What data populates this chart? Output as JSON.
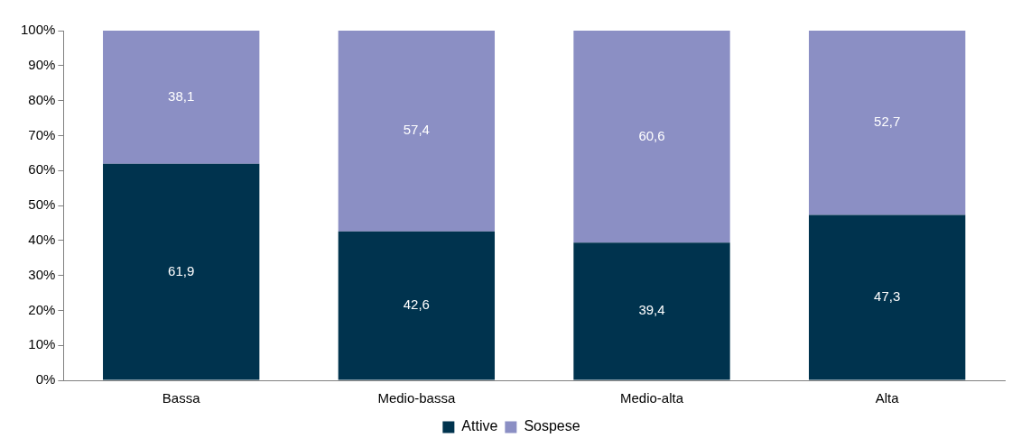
{
  "chart_data": {
    "type": "bar",
    "stacked": true,
    "categories": [
      "Bassa",
      "Medio-bassa",
      "Medio-alta",
      "Alta"
    ],
    "series": [
      {
        "name": "Attive",
        "color": "#00334e",
        "values": [
          61.9,
          42.6,
          39.4,
          47.3
        ],
        "value_labels": [
          "61,9",
          "42,6",
          "39,4",
          "47,3"
        ]
      },
      {
        "name": "Sospese",
        "color": "#8b8fc4",
        "values": [
          38.1,
          57.4,
          60.6,
          52.7
        ],
        "value_labels": [
          "38,1",
          "57,4",
          "60,6",
          "52,7"
        ]
      }
    ],
    "ylim": [
      0,
      100
    ],
    "yticks": [
      {
        "value": 0,
        "label": "0%"
      },
      {
        "value": 10,
        "label": "10%"
      },
      {
        "value": 20,
        "label": "20%"
      },
      {
        "value": 30,
        "label": "30%"
      },
      {
        "value": 40,
        "label": "40%"
      },
      {
        "value": 50,
        "label": "50%"
      },
      {
        "value": 60,
        "label": "60%"
      },
      {
        "value": 70,
        "label": "70%"
      },
      {
        "value": 80,
        "label": "80%"
      },
      {
        "value": 90,
        "label": "90%"
      },
      {
        "value": 100,
        "label": "100%"
      }
    ],
    "grid": false,
    "legend": "bottom"
  }
}
